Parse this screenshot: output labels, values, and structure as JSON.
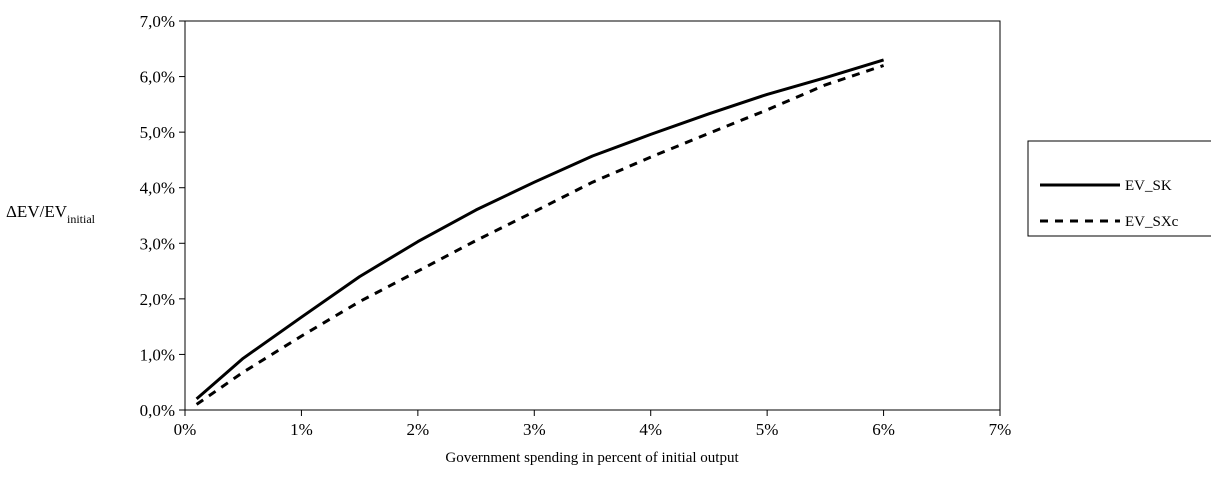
{
  "chart_data": {
    "type": "line",
    "title": "",
    "xlabel": "Government spending in percent of initial output",
    "ylabel": {
      "base": "ΔEV/EV",
      "subscript": "initial"
    },
    "xlim": [
      0,
      7
    ],
    "ylim": [
      0,
      7
    ],
    "x_ticks": [
      0,
      1,
      2,
      3,
      4,
      5,
      6,
      7
    ],
    "x_tick_labels": [
      "0%",
      "1%",
      "2%",
      "3%",
      "4%",
      "5%",
      "6%",
      "7%"
    ],
    "y_ticks": [
      0,
      1,
      2,
      3,
      4,
      5,
      6,
      7
    ],
    "y_tick_labels": [
      "0,0%",
      "1,0%",
      "2,0%",
      "3,0%",
      "4,0%",
      "5,0%",
      "6,0%",
      "7,0%"
    ],
    "grid": false,
    "legend_position": "right",
    "series": [
      {
        "name": "EV_SK",
        "style": "solid",
        "color": "#000000",
        "x": [
          0.1,
          0.5,
          1.0,
          1.5,
          2.0,
          2.5,
          3.0,
          3.5,
          4.0,
          4.5,
          5.0,
          5.5,
          6.0
        ],
        "y": [
          0.2,
          0.93,
          1.67,
          2.4,
          3.03,
          3.6,
          4.1,
          4.57,
          4.96,
          5.33,
          5.68,
          5.98,
          6.3
        ]
      },
      {
        "name": "EV_SXc",
        "style": "dashed",
        "color": "#000000",
        "x": [
          0.1,
          0.5,
          1.0,
          1.5,
          2.0,
          2.5,
          3.0,
          3.5,
          4.0,
          4.5,
          5.0,
          5.5,
          6.0
        ],
        "y": [
          0.1,
          0.68,
          1.33,
          1.95,
          2.5,
          3.05,
          3.57,
          4.1,
          4.55,
          4.98,
          5.4,
          5.85,
          6.2
        ]
      }
    ]
  }
}
